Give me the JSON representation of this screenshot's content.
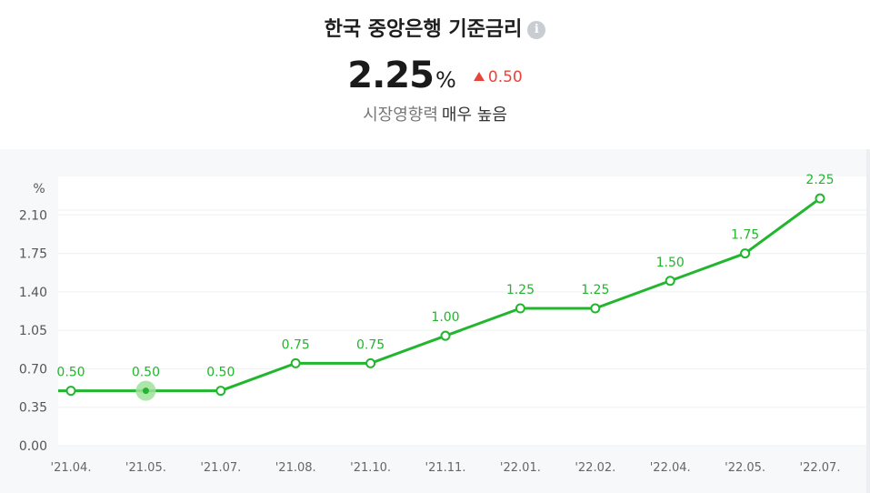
{
  "header": {
    "title": "한국 중앙은행 기준금리",
    "rate_value": "2.25",
    "rate_unit": "%",
    "change": "0.50",
    "impact_label": "시장영향력",
    "impact_level": "매우 높음"
  },
  "chart_data": {
    "type": "line",
    "ylabel": "%",
    "ylim": [
      0,
      2.45
    ],
    "yticks": [
      "0.00",
      "0.35",
      "0.70",
      "1.05",
      "1.40",
      "1.75",
      "2.10"
    ],
    "x": [
      "'21.04.",
      "'21.05.",
      "'21.07.",
      "'21.08.",
      "'21.10.",
      "'21.11.",
      "'22.01.",
      "'22.02.",
      "'22.04.",
      "'22.05.",
      "'22.07."
    ],
    "series": [
      {
        "values": [
          0.5,
          0.5,
          0.5,
          0.75,
          0.75,
          1.0,
          1.25,
          1.25,
          1.5,
          1.75,
          2.25
        ],
        "labels": [
          "0.50",
          "0.50",
          "0.50",
          "0.75",
          "0.75",
          "1.00",
          "1.25",
          "1.25",
          "1.50",
          "1.75",
          "2.25"
        ]
      }
    ],
    "highlighted_index": 1,
    "grid": true,
    "colors": {
      "line": "#22b52e",
      "highlight": "#9ee29a"
    }
  }
}
